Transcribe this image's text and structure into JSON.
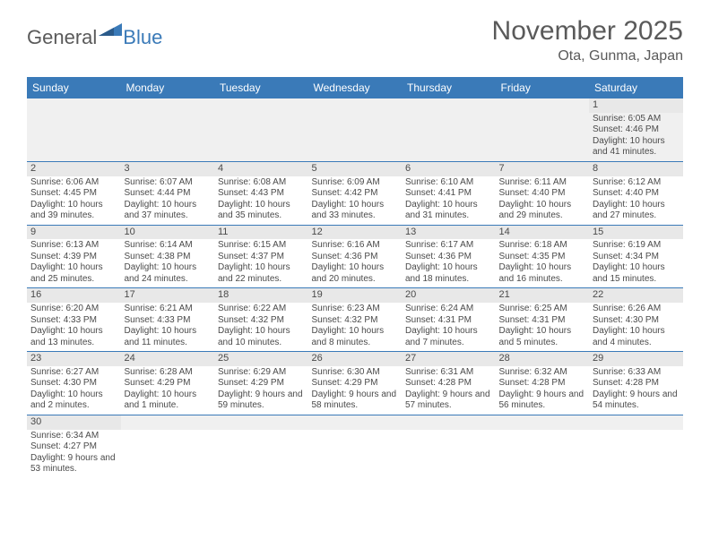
{
  "logo": {
    "general": "General",
    "blue": "Blue"
  },
  "title": "November 2025",
  "location": "Ota, Gunma, Japan",
  "colors": {
    "header_bar": "#3a7ab8",
    "daynum_bg": "#e8e8e8",
    "empty_bg": "#f0f0f0",
    "text": "#4a4a4a",
    "white": "#ffffff"
  },
  "weekdays": [
    "Sunday",
    "Monday",
    "Tuesday",
    "Wednesday",
    "Thursday",
    "Friday",
    "Saturday"
  ],
  "weeks": [
    [
      null,
      null,
      null,
      null,
      null,
      null,
      {
        "d": "1",
        "sr": "Sunrise: 6:05 AM",
        "ss": "Sunset: 4:46 PM",
        "dl": "Daylight: 10 hours and 41 minutes."
      }
    ],
    [
      {
        "d": "2",
        "sr": "Sunrise: 6:06 AM",
        "ss": "Sunset: 4:45 PM",
        "dl": "Daylight: 10 hours and 39 minutes."
      },
      {
        "d": "3",
        "sr": "Sunrise: 6:07 AM",
        "ss": "Sunset: 4:44 PM",
        "dl": "Daylight: 10 hours and 37 minutes."
      },
      {
        "d": "4",
        "sr": "Sunrise: 6:08 AM",
        "ss": "Sunset: 4:43 PM",
        "dl": "Daylight: 10 hours and 35 minutes."
      },
      {
        "d": "5",
        "sr": "Sunrise: 6:09 AM",
        "ss": "Sunset: 4:42 PM",
        "dl": "Daylight: 10 hours and 33 minutes."
      },
      {
        "d": "6",
        "sr": "Sunrise: 6:10 AM",
        "ss": "Sunset: 4:41 PM",
        "dl": "Daylight: 10 hours and 31 minutes."
      },
      {
        "d": "7",
        "sr": "Sunrise: 6:11 AM",
        "ss": "Sunset: 4:40 PM",
        "dl": "Daylight: 10 hours and 29 minutes."
      },
      {
        "d": "8",
        "sr": "Sunrise: 6:12 AM",
        "ss": "Sunset: 4:40 PM",
        "dl": "Daylight: 10 hours and 27 minutes."
      }
    ],
    [
      {
        "d": "9",
        "sr": "Sunrise: 6:13 AM",
        "ss": "Sunset: 4:39 PM",
        "dl": "Daylight: 10 hours and 25 minutes."
      },
      {
        "d": "10",
        "sr": "Sunrise: 6:14 AM",
        "ss": "Sunset: 4:38 PM",
        "dl": "Daylight: 10 hours and 24 minutes."
      },
      {
        "d": "11",
        "sr": "Sunrise: 6:15 AM",
        "ss": "Sunset: 4:37 PM",
        "dl": "Daylight: 10 hours and 22 minutes."
      },
      {
        "d": "12",
        "sr": "Sunrise: 6:16 AM",
        "ss": "Sunset: 4:36 PM",
        "dl": "Daylight: 10 hours and 20 minutes."
      },
      {
        "d": "13",
        "sr": "Sunrise: 6:17 AM",
        "ss": "Sunset: 4:36 PM",
        "dl": "Daylight: 10 hours and 18 minutes."
      },
      {
        "d": "14",
        "sr": "Sunrise: 6:18 AM",
        "ss": "Sunset: 4:35 PM",
        "dl": "Daylight: 10 hours and 16 minutes."
      },
      {
        "d": "15",
        "sr": "Sunrise: 6:19 AM",
        "ss": "Sunset: 4:34 PM",
        "dl": "Daylight: 10 hours and 15 minutes."
      }
    ],
    [
      {
        "d": "16",
        "sr": "Sunrise: 6:20 AM",
        "ss": "Sunset: 4:33 PM",
        "dl": "Daylight: 10 hours and 13 minutes."
      },
      {
        "d": "17",
        "sr": "Sunrise: 6:21 AM",
        "ss": "Sunset: 4:33 PM",
        "dl": "Daylight: 10 hours and 11 minutes."
      },
      {
        "d": "18",
        "sr": "Sunrise: 6:22 AM",
        "ss": "Sunset: 4:32 PM",
        "dl": "Daylight: 10 hours and 10 minutes."
      },
      {
        "d": "19",
        "sr": "Sunrise: 6:23 AM",
        "ss": "Sunset: 4:32 PM",
        "dl": "Daylight: 10 hours and 8 minutes."
      },
      {
        "d": "20",
        "sr": "Sunrise: 6:24 AM",
        "ss": "Sunset: 4:31 PM",
        "dl": "Daylight: 10 hours and 7 minutes."
      },
      {
        "d": "21",
        "sr": "Sunrise: 6:25 AM",
        "ss": "Sunset: 4:31 PM",
        "dl": "Daylight: 10 hours and 5 minutes."
      },
      {
        "d": "22",
        "sr": "Sunrise: 6:26 AM",
        "ss": "Sunset: 4:30 PM",
        "dl": "Daylight: 10 hours and 4 minutes."
      }
    ],
    [
      {
        "d": "23",
        "sr": "Sunrise: 6:27 AM",
        "ss": "Sunset: 4:30 PM",
        "dl": "Daylight: 10 hours and 2 minutes."
      },
      {
        "d": "24",
        "sr": "Sunrise: 6:28 AM",
        "ss": "Sunset: 4:29 PM",
        "dl": "Daylight: 10 hours and 1 minute."
      },
      {
        "d": "25",
        "sr": "Sunrise: 6:29 AM",
        "ss": "Sunset: 4:29 PM",
        "dl": "Daylight: 9 hours and 59 minutes."
      },
      {
        "d": "26",
        "sr": "Sunrise: 6:30 AM",
        "ss": "Sunset: 4:29 PM",
        "dl": "Daylight: 9 hours and 58 minutes."
      },
      {
        "d": "27",
        "sr": "Sunrise: 6:31 AM",
        "ss": "Sunset: 4:28 PM",
        "dl": "Daylight: 9 hours and 57 minutes."
      },
      {
        "d": "28",
        "sr": "Sunrise: 6:32 AM",
        "ss": "Sunset: 4:28 PM",
        "dl": "Daylight: 9 hours and 56 minutes."
      },
      {
        "d": "29",
        "sr": "Sunrise: 6:33 AM",
        "ss": "Sunset: 4:28 PM",
        "dl": "Daylight: 9 hours and 54 minutes."
      }
    ],
    [
      {
        "d": "30",
        "sr": "Sunrise: 6:34 AM",
        "ss": "Sunset: 4:27 PM",
        "dl": "Daylight: 9 hours and 53 minutes."
      },
      null,
      null,
      null,
      null,
      null,
      null
    ]
  ]
}
